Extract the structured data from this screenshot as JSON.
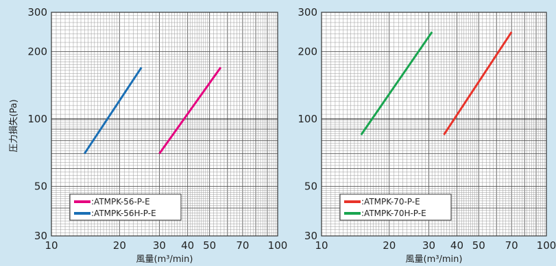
{
  "chart_data": [
    {
      "type": "line",
      "xscale": "log",
      "yscale": "log",
      "xlim": [
        10,
        100
      ],
      "ylim": [
        30,
        300
      ],
      "xlabel": "風量(m³/min)",
      "ylabel": "圧力損失(Pa)",
      "xticks": [
        "10",
        "20",
        "30",
        "40",
        "50",
        "70",
        "100"
      ],
      "yticks": [
        "30",
        "50",
        "100",
        "200",
        "300"
      ],
      "grid": true,
      "legend_position": "bottom-left",
      "series": [
        {
          "name": ":ATMPK-56-P-E",
          "color": "#e5007f",
          "x": [
            30,
            56
          ],
          "y": [
            70,
            170
          ]
        },
        {
          "name": ":ATMPK-56H-P-E",
          "color": "#1a6fb5",
          "x": [
            14,
            25
          ],
          "y": [
            70,
            170
          ]
        }
      ]
    },
    {
      "type": "line",
      "xscale": "log",
      "yscale": "log",
      "xlim": [
        10,
        100
      ],
      "ylim": [
        30,
        300
      ],
      "xlabel": "風量(m³/min)",
      "ylabel": "",
      "xticks": [
        "10",
        "20",
        "30",
        "40",
        "50",
        "70",
        "100"
      ],
      "yticks": [
        "30",
        "50",
        "100",
        "200",
        "300"
      ],
      "grid": true,
      "legend_position": "bottom-left",
      "series": [
        {
          "name": ":ATMPK-70-P-E",
          "color": "#e8332a",
          "x": [
            35,
            70
          ],
          "y": [
            85,
            245
          ]
        },
        {
          "name": ":ATMPK-70H-P-E",
          "color": "#1aa550",
          "x": [
            15,
            31
          ],
          "y": [
            85,
            245
          ]
        }
      ]
    }
  ]
}
